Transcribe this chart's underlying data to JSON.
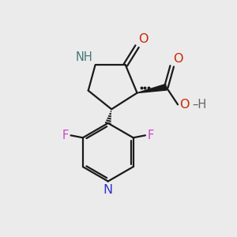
{
  "background_color": "#ebebeb",
  "bond_color": "#1a1a1a",
  "N_color": "#3333cc",
  "O_color": "#cc2200",
  "F_color": "#cc44cc",
  "NH_color": "#447777",
  "H_color": "#666666",
  "figsize": [
    3.0,
    3.0
  ],
  "dpi": 100,
  "xlim": [
    0,
    10
  ],
  "ylim": [
    0,
    10
  ]
}
